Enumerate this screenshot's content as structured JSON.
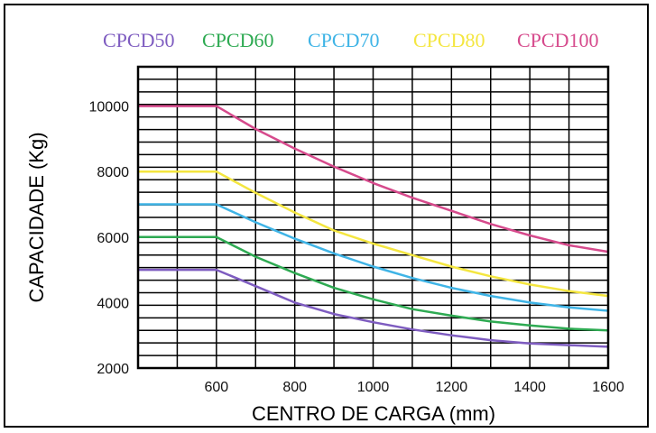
{
  "chart_data": {
    "type": "line",
    "xlabel": "CENTRO DE CARGA (mm)",
    "ylabel": "CAPACIDADE (Kg)",
    "x_ticks": [
      "600",
      "800",
      "1000",
      "1200",
      "1400",
      "1600"
    ],
    "y_ticks": [
      "2000",
      "4000",
      "6000",
      "8000",
      "10000"
    ],
    "xlim": [
      400,
      1600
    ],
    "ylim": [
      2000,
      11200
    ],
    "legend_position": "top",
    "grid": true,
    "series": [
      {
        "name": "CPCD50",
        "color": "#7e5cc0",
        "x": [
          400,
          600,
          700,
          800,
          900,
          1000,
          1100,
          1200,
          1300,
          1400,
          1500,
          1600
        ],
        "y": [
          5000,
          5000,
          4500,
          4000,
          3650,
          3400,
          3180,
          3000,
          2850,
          2750,
          2700,
          2650
        ]
      },
      {
        "name": "CPCD60",
        "color": "#2eaa52",
        "x": [
          400,
          600,
          700,
          800,
          900,
          1000,
          1100,
          1200,
          1300,
          1400,
          1500,
          1600
        ],
        "y": [
          6000,
          6000,
          5400,
          4900,
          4450,
          4100,
          3800,
          3600,
          3420,
          3300,
          3200,
          3150
        ]
      },
      {
        "name": "CPCD70",
        "color": "#3fb4e6",
        "x": [
          400,
          600,
          700,
          800,
          900,
          1000,
          1100,
          1200,
          1300,
          1400,
          1500,
          1600
        ],
        "y": [
          7000,
          7000,
          6450,
          5950,
          5500,
          5100,
          4750,
          4450,
          4200,
          4000,
          3850,
          3750
        ]
      },
      {
        "name": "CPCD80",
        "color": "#f4e640",
        "x": [
          400,
          600,
          700,
          800,
          900,
          1000,
          1100,
          1200,
          1300,
          1400,
          1500,
          1600
        ],
        "y": [
          8000,
          8000,
          7350,
          6750,
          6200,
          5800,
          5450,
          5100,
          4800,
          4550,
          4350,
          4200
        ]
      },
      {
        "name": "CPCD100",
        "color": "#d64a8c",
        "x": [
          400,
          600,
          700,
          800,
          900,
          1000,
          1100,
          1200,
          1300,
          1400,
          1500,
          1600
        ],
        "y": [
          10000,
          10000,
          9300,
          8700,
          8150,
          7650,
          7200,
          6800,
          6400,
          6050,
          5750,
          5550
        ]
      }
    ]
  }
}
